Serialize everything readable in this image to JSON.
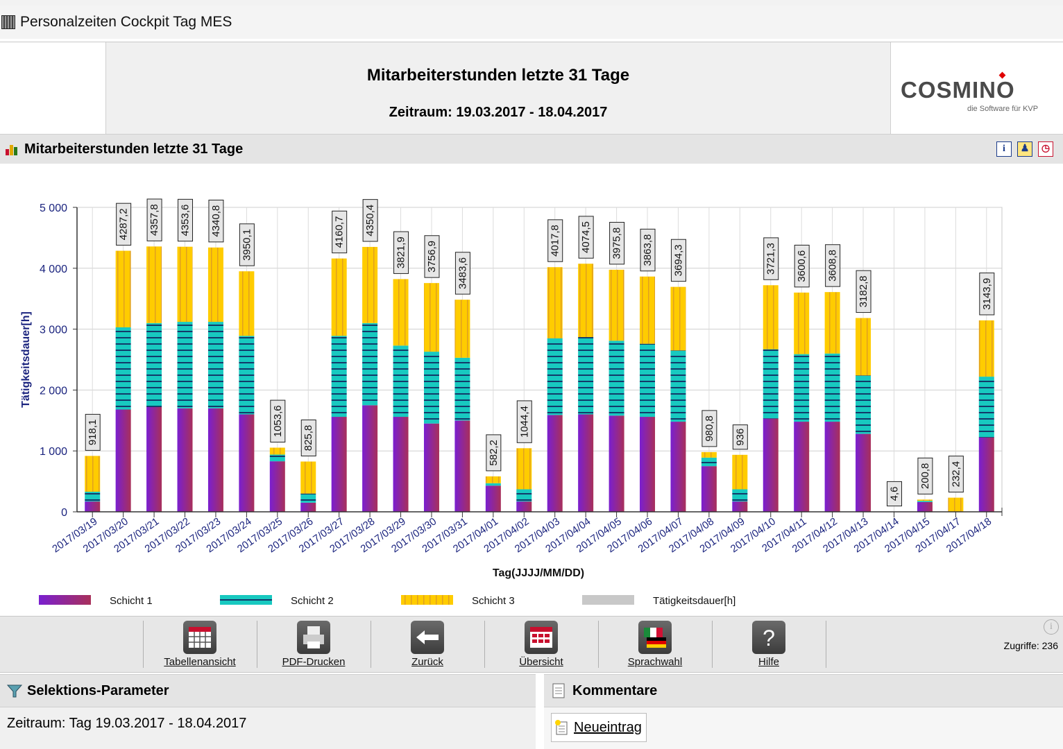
{
  "window": {
    "title": "Personalzeiten Cockpit Tag MES"
  },
  "report": {
    "title": "Mitarbeiterstunden letzte 31 Tage",
    "period": "Zeitraum: 19.03.2017 - 18.04.2017",
    "logo": {
      "text": "COSMINO",
      "tagline": "die Software für KVP"
    }
  },
  "chart_panel": {
    "title": "Mitarbeiterstunden letzte 31 Tage",
    "buttons": [
      "i",
      "user",
      "clock"
    ]
  },
  "chart_data": {
    "type": "bar",
    "stacked": true,
    "title": "Mitarbeiterstunden letzte 31 Tage",
    "xlabel": "Tag(JJJJ/MM/DD)",
    "ylabel": "Tätigkeitsdauer[h]",
    "ylim": [
      0,
      5000
    ],
    "yticks": [
      0,
      1000,
      2000,
      3000,
      4000,
      5000
    ],
    "ytick_labels": [
      "0",
      "1 000",
      "2 000",
      "3 000",
      "4 000",
      "5 000"
    ],
    "categories": [
      "2017/03/19",
      "2017/03/20",
      "2017/03/21",
      "2017/03/22",
      "2017/03/23",
      "2017/03/24",
      "2017/03/25",
      "2017/03/26",
      "2017/03/27",
      "2017/03/28",
      "2017/03/29",
      "2017/03/30",
      "2017/03/31",
      "2017/04/01",
      "2017/04/02",
      "2017/04/03",
      "2017/04/04",
      "2017/04/05",
      "2017/04/06",
      "2017/04/07",
      "2017/04/08",
      "2017/04/09",
      "2017/04/10",
      "2017/04/11",
      "2017/04/12",
      "2017/04/13",
      "2017/04/14",
      "2017/04/15",
      "2017/04/17",
      "2017/04/18"
    ],
    "series": [
      {
        "name": "Schicht 1",
        "color": "#8b27c4",
        "values": [
          170,
          1680,
          1720,
          1700,
          1700,
          1600,
          830,
          150,
          1560,
          1750,
          1560,
          1450,
          1500,
          430,
          170,
          1590,
          1600,
          1580,
          1560,
          1480,
          750,
          170,
          1530,
          1480,
          1480,
          1280,
          0,
          160,
          0,
          1220
        ]
      },
      {
        "name": "Schicht 2",
        "color": "#18c9c0",
        "values": [
          160,
          1350,
          1380,
          1420,
          1420,
          1290,
          110,
          150,
          1330,
          1350,
          1170,
          1180,
          1030,
          40,
          200,
          1260,
          1270,
          1230,
          1200,
          1170,
          140,
          200,
          1140,
          1110,
          1120,
          960,
          0,
          20,
          0,
          1000
        ]
      },
      {
        "name": "Schicht 3",
        "color": "#ffcc00",
        "values": [
          588.1,
          1257.2,
          1257.8,
          1233.6,
          1220.8,
          1060.1,
          113.6,
          525.8,
          1270.7,
          1250.4,
          1091.9,
          1126.9,
          953.6,
          112.2,
          674.4,
          1167.8,
          1204.5,
          1165.8,
          1103.8,
          1044.3,
          90.8,
          566,
          1051.3,
          1010.6,
          1008.8,
          942.8,
          4.6,
          20.8,
          232.4,
          923.9
        ]
      }
    ],
    "totals_series": {
      "name": "Tätigkeitsdauer[h]",
      "color": "#c8c8c8"
    },
    "total_labels": [
      "918,1",
      "4287,2",
      "4357,8",
      "4353,6",
      "4340,8",
      "3950,1",
      "1053,6",
      "825,8",
      "4160,7",
      "4350,4",
      "3821,9",
      "3756,9",
      "3483,6",
      "582,2",
      "1044,4",
      "4017,8",
      "4074,5",
      "3975,8",
      "3863,8",
      "3694,3",
      "980,8",
      "936",
      "3721,3",
      "3600,6",
      "3608,8",
      "3182,8",
      "4,6",
      "200,8",
      "232,4",
      "3143,9"
    ],
    "totals": [
      918.1,
      4287.2,
      4357.8,
      4353.6,
      4340.8,
      3950.1,
      1053.6,
      825.8,
      4160.7,
      4350.4,
      3821.9,
      3756.9,
      3483.6,
      582.2,
      1044.4,
      4017.8,
      4074.5,
      3975.8,
      3863.8,
      3694.3,
      980.8,
      936,
      3721.3,
      3600.6,
      3608.8,
      3182.8,
      4.6,
      200.8,
      232.4,
      3143.9
    ],
    "legend_position": "bottom"
  },
  "toolbar": {
    "buttons": [
      {
        "label": "Tabellenansicht",
        "icon": "table-icon"
      },
      {
        "label": "PDF-Drucken",
        "icon": "printer-icon"
      },
      {
        "label": "Zurück",
        "icon": "back-arrow-icon"
      },
      {
        "label": "Übersicht",
        "icon": "overview-icon"
      },
      {
        "label": "Sprachwahl",
        "icon": "language-flag-icon"
      },
      {
        "label": "Hilfe",
        "icon": "help-icon"
      }
    ],
    "zugriffe": "Zugriffe: 236"
  },
  "selection": {
    "title": "Selektions-Parameter",
    "text": "Zeitraum: Tag 19.03.2017 - 18.04.2017"
  },
  "comments": {
    "title": "Kommentare",
    "new_entry": "Neueintrag"
  }
}
